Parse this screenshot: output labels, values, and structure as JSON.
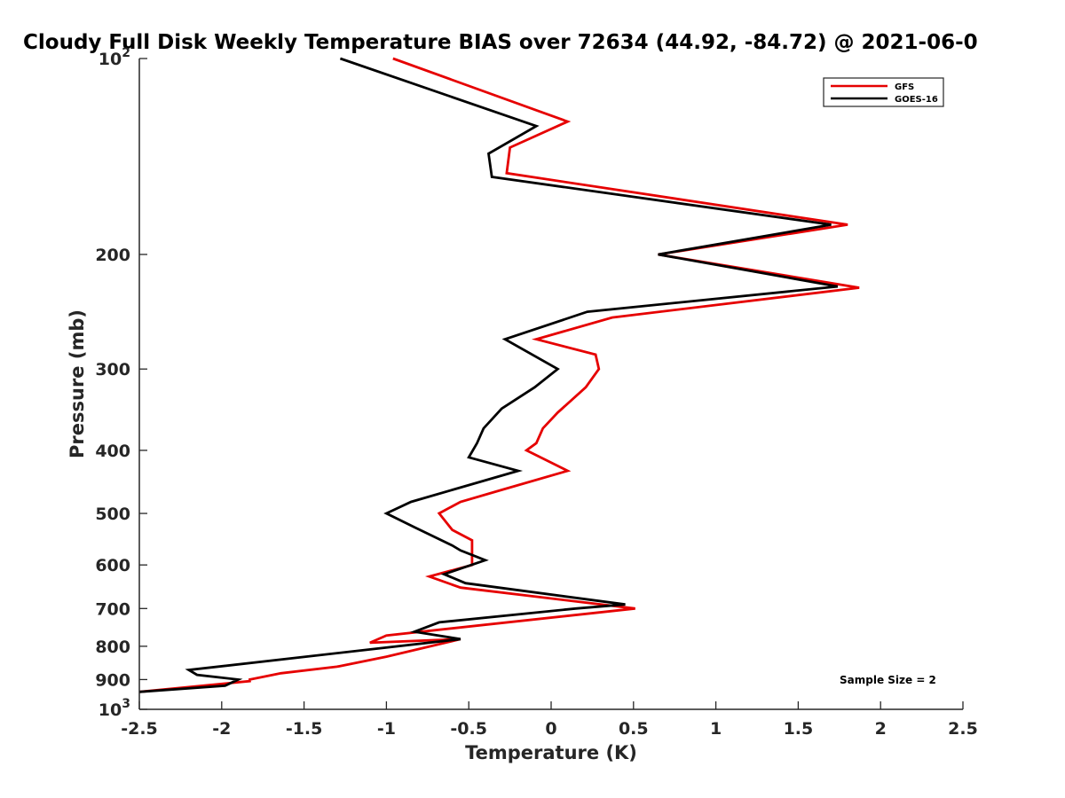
{
  "chart_data": {
    "type": "line",
    "title": "Cloudy Full Disk Weekly Temperature BIAS over 72634 (44.92, -84.72) @ 2021-06-0",
    "xlabel": "Temperature (K)",
    "ylabel": "Pressure (mb)",
    "xlim": [
      -2.5,
      2.5
    ],
    "ylim": [
      100,
      1000
    ],
    "y_scale": "log",
    "y_reversed": true,
    "x_ticks": [
      "-2.5",
      "-2",
      "-1.5",
      "-1",
      "-0.5",
      "0",
      "0.5",
      "1",
      "1.5",
      "2",
      "2.5"
    ],
    "y_tick_values": [
      100,
      200,
      300,
      400,
      500,
      600,
      700,
      800,
      900,
      1000
    ],
    "y_tick_labels": [
      {
        "base": "10",
        "exp": "2"
      },
      {
        "base": "200",
        "exp": ""
      },
      {
        "base": "300",
        "exp": ""
      },
      {
        "base": "400",
        "exp": ""
      },
      {
        "base": "500",
        "exp": ""
      },
      {
        "base": "600",
        "exp": ""
      },
      {
        "base": "700",
        "exp": ""
      },
      {
        "base": "800",
        "exp": ""
      },
      {
        "base": "900",
        "exp": ""
      },
      {
        "base": "10",
        "exp": "3"
      }
    ],
    "grid": false,
    "legend_position": "top-right",
    "annotation": "Sample Size = 2",
    "series": [
      {
        "name": "GFS",
        "color": "#e60000",
        "points": [
          [
            -0.96,
            100
          ],
          [
            0.1,
            125
          ],
          [
            -0.25,
            137
          ],
          [
            -0.27,
            150
          ],
          [
            1.8,
            180
          ],
          [
            0.65,
            200
          ],
          [
            1.87,
            225
          ],
          [
            0.37,
            250
          ],
          [
            -0.09,
            270
          ],
          [
            0.27,
            285
          ],
          [
            0.29,
            300
          ],
          [
            0.21,
            320
          ],
          [
            0.04,
            350
          ],
          [
            -0.05,
            370
          ],
          [
            -0.09,
            390
          ],
          [
            -0.15,
            400
          ],
          [
            0.1,
            430
          ],
          [
            -0.3,
            460
          ],
          [
            -0.55,
            480
          ],
          [
            -0.68,
            500
          ],
          [
            -0.6,
            530
          ],
          [
            -0.48,
            550
          ],
          [
            -0.48,
            600
          ],
          [
            -0.74,
            625
          ],
          [
            -0.55,
            650
          ],
          [
            0.51,
            700
          ],
          [
            -1.0,
            770
          ],
          [
            -1.1,
            790
          ],
          [
            -0.55,
            780
          ],
          [
            -1.0,
            830
          ],
          [
            -1.3,
            860
          ],
          [
            -1.64,
            880
          ],
          [
            -1.83,
            900
          ],
          [
            -1.83,
            905
          ],
          [
            -2.5,
            940
          ]
        ]
      },
      {
        "name": "GOES-16",
        "color": "#000000",
        "points": [
          [
            -1.28,
            100
          ],
          [
            -0.09,
            127
          ],
          [
            -0.38,
            140
          ],
          [
            -0.36,
            152
          ],
          [
            1.7,
            180
          ],
          [
            0.65,
            200
          ],
          [
            1.74,
            224
          ],
          [
            0.22,
            245
          ],
          [
            -0.28,
            270
          ],
          [
            0.04,
            300
          ],
          [
            -0.1,
            320
          ],
          [
            -0.3,
            345
          ],
          [
            -0.41,
            370
          ],
          [
            -0.45,
            390
          ],
          [
            -0.5,
            410
          ],
          [
            -0.2,
            430
          ],
          [
            -0.6,
            460
          ],
          [
            -0.85,
            480
          ],
          [
            -1.0,
            500
          ],
          [
            -0.83,
            525
          ],
          [
            -0.6,
            560
          ],
          [
            -0.55,
            570
          ],
          [
            -0.4,
            590
          ],
          [
            -0.65,
            620
          ],
          [
            -0.52,
            640
          ],
          [
            0.45,
            690
          ],
          [
            0.15,
            700
          ],
          [
            -0.68,
            735
          ],
          [
            -0.83,
            760
          ],
          [
            -0.55,
            780
          ],
          [
            -2.2,
            870
          ],
          [
            -2.15,
            885
          ],
          [
            -1.9,
            900
          ],
          [
            -1.98,
            920
          ],
          [
            -2.5,
            940
          ]
        ]
      }
    ]
  }
}
